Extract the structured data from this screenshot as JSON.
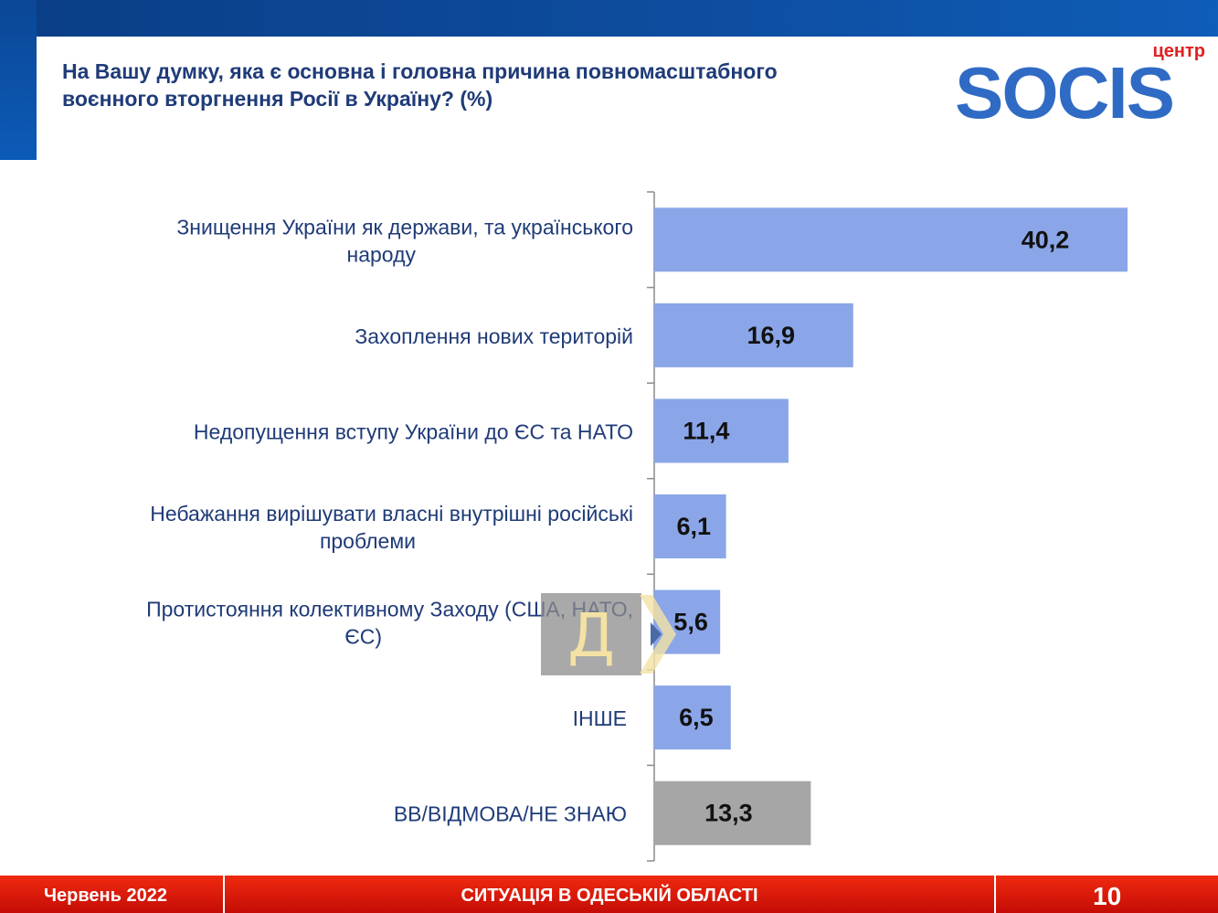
{
  "title_lines": [
    "На Вашу думку, яка є основна і головна причина повномасштабного",
    "воєнного вторгнення Росії в Україну? (%)"
  ],
  "logo": {
    "small": "центр",
    "word": "SOCIS"
  },
  "watermark_letter": "Д",
  "footer": {
    "date": "Червень 2022",
    "center": "СИТУАЦІЯ В ОДЕСЬКІЙ ОБЛАСТІ",
    "page": "10"
  },
  "colors": {
    "header_blue": "#0d4c9e",
    "bar_blue": "#8aa6e8",
    "bar_gray": "#a6a6a6",
    "label_text": "#1f3b78",
    "footer_red": "#e01e0a"
  },
  "chart_data": {
    "type": "bar",
    "orientation": "horizontal",
    "categories": [
      [
        "Знищення України як держави, та українського",
        "народу"
      ],
      [
        "Захоплення нових територій"
      ],
      [
        "Недопущення вступу України до ЄС та НАТО"
      ],
      [
        "Небажання вирішувати власні внутрішні російські",
        "проблеми"
      ],
      [
        "Протистояння колективному Заходу (США, НАТО,",
        "ЄС)"
      ],
      [
        "ІНШЕ"
      ],
      [
        "ВВ/ВІДМОВА/НЕ ЗНАЮ"
      ]
    ],
    "values": [
      40.2,
      16.9,
      11.4,
      6.1,
      5.6,
      6.5,
      13.3
    ],
    "value_labels": [
      "40,2",
      "16,9",
      "11,4",
      "6,1",
      "5,6",
      "6,5",
      "13,3"
    ],
    "bar_colors": [
      "#8aa6e8",
      "#8aa6e8",
      "#8aa6e8",
      "#8aa6e8",
      "#8aa6e8",
      "#8aa6e8",
      "#a6a6a6"
    ],
    "xlim": [
      0,
      45
    ],
    "grid": false,
    "legend": "none"
  }
}
